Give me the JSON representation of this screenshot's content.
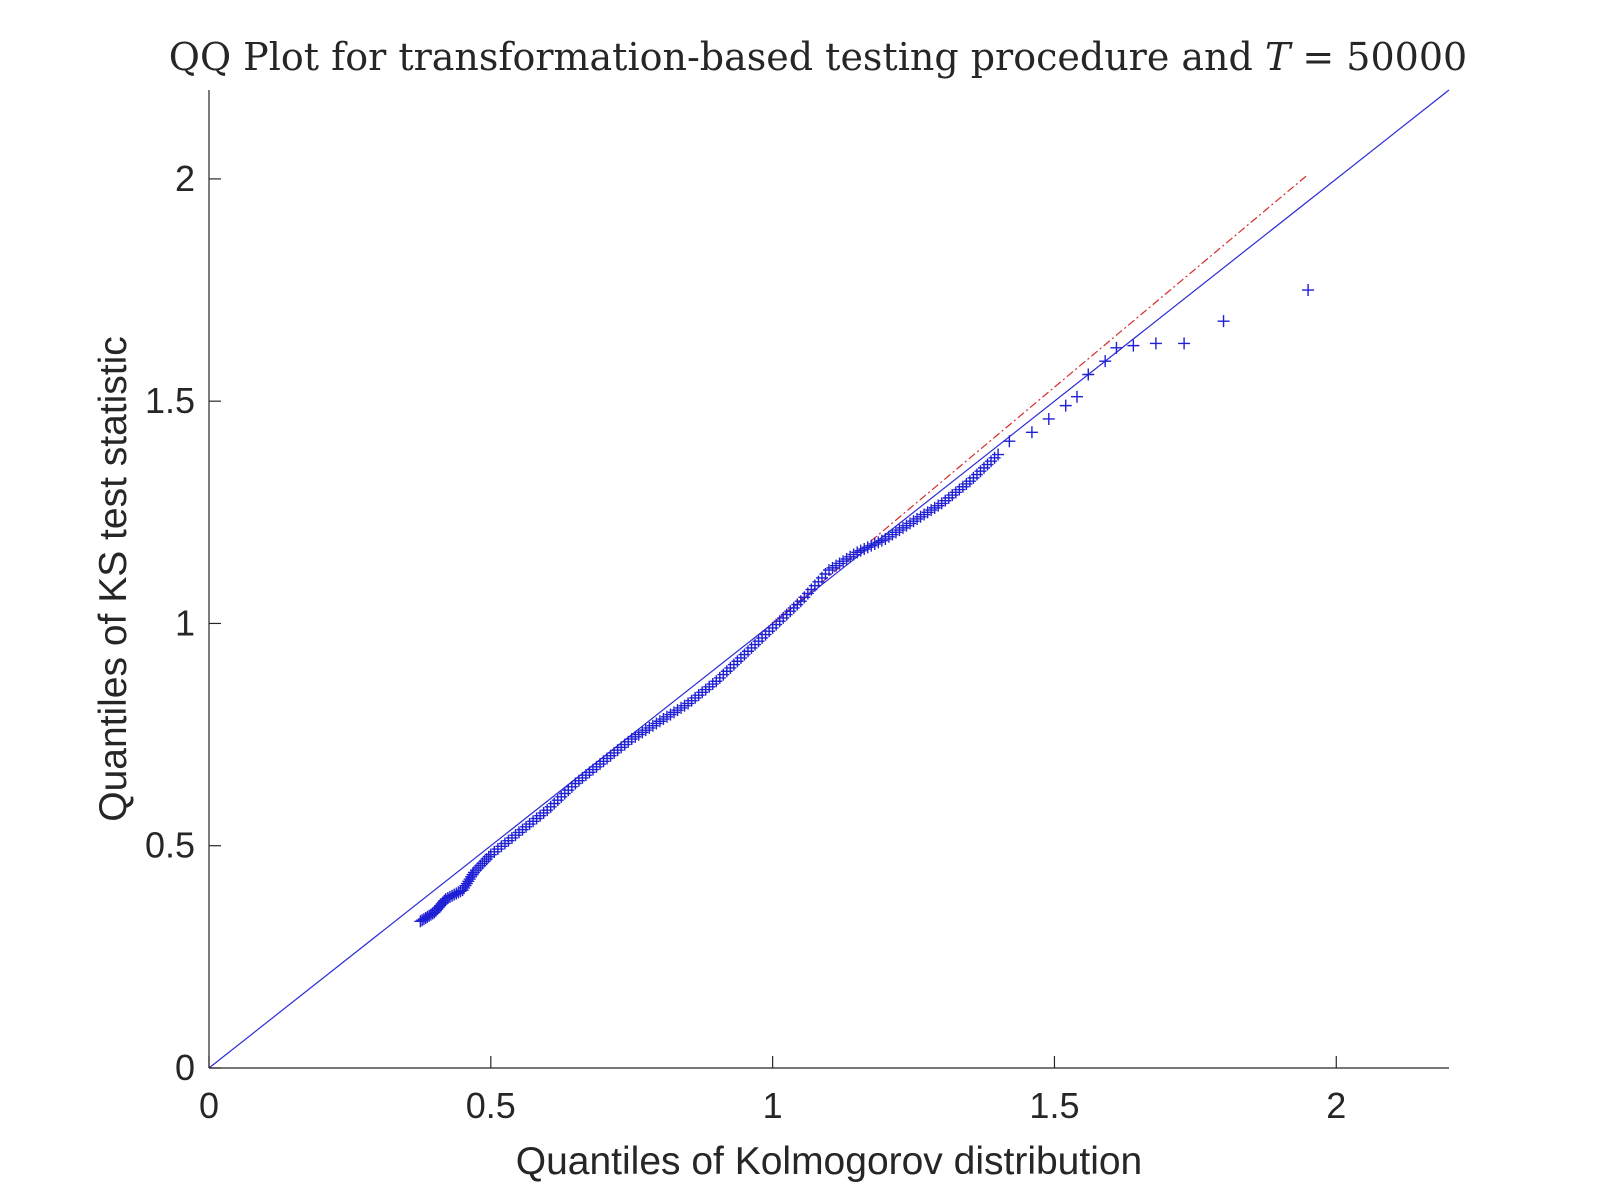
{
  "chart_data": {
    "type": "scatter",
    "title_prefix": "QQ Plot for transformation-based testing procedure and ",
    "title_symbol": "T",
    "title_suffix": " = 50000",
    "xlabel": "Quantiles of Kolmogorov distribution",
    "ylabel": "Quantiles of KS test statistic",
    "xlim": [
      0,
      2.2
    ],
    "ylim": [
      0,
      2.2
    ],
    "xticks": [
      0,
      0.5,
      1,
      1.5,
      2
    ],
    "xtick_labels": [
      "0",
      "0.5",
      "1",
      "1.5",
      "2"
    ],
    "yticks": [
      0,
      0.5,
      1,
      1.5,
      2
    ],
    "ytick_labels": [
      "0",
      "0.5",
      "1",
      "1.5",
      "2"
    ],
    "grid": false,
    "colors": {
      "markers": "#1f1fd6",
      "reference_line": "#2b2bd6",
      "fit_line": "#d62b2b",
      "axes": "#262626"
    },
    "reference_line": {
      "x": [
        0,
        2.2
      ],
      "y": [
        0,
        2.2
      ]
    },
    "fit_line": {
      "x": [
        1.0,
        1.95
      ],
      "y": [
        1.0,
        2.01
      ]
    },
    "quantile_curve": {
      "x": [
        0.375,
        0.4,
        0.42,
        0.45,
        0.47,
        0.5,
        0.55,
        0.6,
        0.65,
        0.7,
        0.75,
        0.8,
        0.85,
        0.9,
        0.95,
        1.0,
        1.05,
        1.1,
        1.15,
        1.2,
        1.25,
        1.3,
        1.35,
        1.4
      ],
      "y": [
        0.33,
        0.35,
        0.38,
        0.4,
        0.44,
        0.48,
        0.53,
        0.58,
        0.64,
        0.69,
        0.74,
        0.78,
        0.82,
        0.87,
        0.93,
        0.99,
        1.05,
        1.12,
        1.16,
        1.19,
        1.23,
        1.27,
        1.32,
        1.38
      ]
    },
    "tail_points": {
      "x": [
        1.42,
        1.46,
        1.49,
        1.52,
        1.54,
        1.56,
        1.59,
        1.61,
        1.64,
        1.68,
        1.73,
        1.8,
        1.95
      ],
      "y": [
        1.41,
        1.43,
        1.46,
        1.49,
        1.51,
        1.56,
        1.59,
        1.62,
        1.625,
        1.63,
        1.63,
        1.68,
        1.75
      ]
    }
  }
}
